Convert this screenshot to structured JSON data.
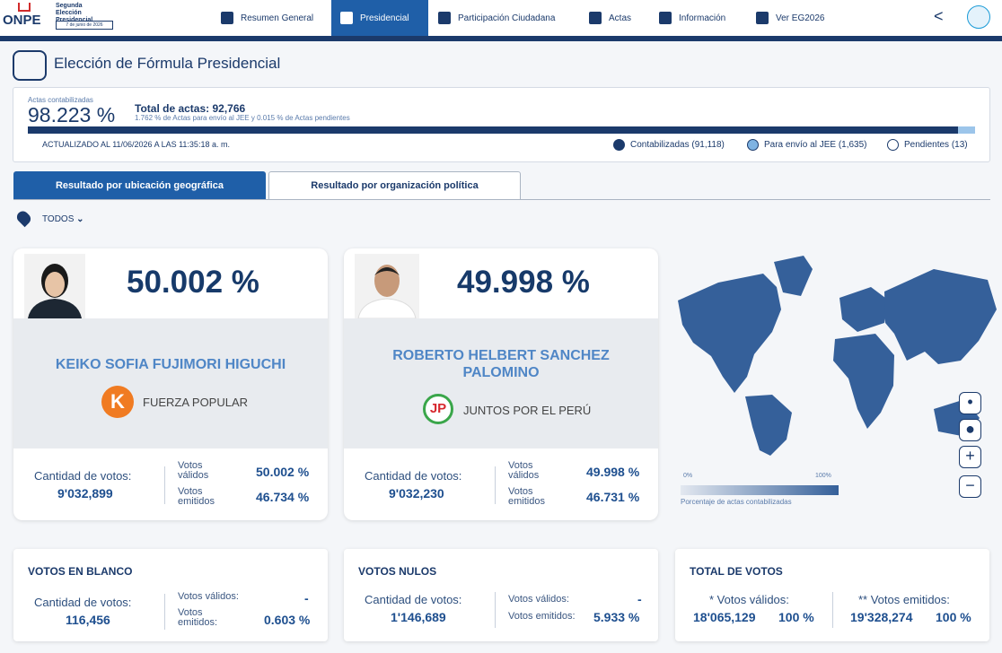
{
  "header": {
    "logo": "ONPE",
    "election": "Segunda Elección Presidencial",
    "date": "7 de junio de 2026",
    "nav": [
      "Resumen General",
      "Presidencial",
      "Participación Ciudadana",
      "Actas",
      "Información",
      "Ver EG2026"
    ]
  },
  "page_title": "Elección de Fórmula Presidencial",
  "progress": {
    "label": "Actas contabilizadas",
    "percent": "98.223 %",
    "total": "Total de actas: 92,766",
    "note": "1.762 % de Actas para envío al JEE y 0.015 % de Actas pendientes",
    "updated": "ACTUALIZADO AL 11/06/2026 A LAS 11:35:18 a. m.",
    "legend": [
      "Contabilizadas (91,118)",
      "Para envío al JEE (1,635)",
      "Pendientes (13)"
    ]
  },
  "tabs": [
    "Resultado por ubicación geográfica",
    "Resultado por organización política"
  ],
  "filter": "TODOS",
  "candidates": [
    {
      "percent": "50.002 %",
      "name": "KEIKO SOFIA FUJIMORI HIGUCHI",
      "party": "FUERZA POPULAR",
      "votes_label": "Cantidad de votos:",
      "votes": "9'032,899",
      "valid_label": "Votos válidos",
      "valid": "50.002 %",
      "emitted_label": "Votos emitidos",
      "emitted": "46.734 %"
    },
    {
      "percent": "49.998 %",
      "name": "ROBERTO HELBERT SANCHEZ PALOMINO",
      "party": "JUNTOS POR EL PERÚ",
      "votes_label": "Cantidad de votos:",
      "votes": "9'032,230",
      "valid_label": "Votos válidos",
      "valid": "49.998 %",
      "emitted_label": "Votos emitidos",
      "emitted": "46.731 %"
    }
  ],
  "map": {
    "legend_min": "0%",
    "legend_max": "100%",
    "legend_title": "Porcentaje de actas contabilizadas"
  },
  "summary": [
    {
      "title": "VOTOS EN BLANCO",
      "votes_label": "Cantidad de votos:",
      "votes": "116,456",
      "valid_label": "Votos válidos:",
      "valid": "-",
      "emitted_label": "Votos emitidos:",
      "emitted": "0.603 %"
    },
    {
      "title": "VOTOS NULOS",
      "votes_label": "Cantidad de votos:",
      "votes": "1'146,689",
      "valid_label": "Votos válidos:",
      "valid": "-",
      "emitted_label": "Votos emitidos:",
      "emitted": "5.933 %"
    },
    {
      "title": "TOTAL DE VOTOS",
      "valid_label": "* Votos válidos:",
      "valid_votes": "18'065,129",
      "valid_percent": "100 %",
      "emitted_label": "** Votos emitidos:",
      "emitted_votes": "19'328,274",
      "emitted_percent": "100 %"
    }
  ]
}
